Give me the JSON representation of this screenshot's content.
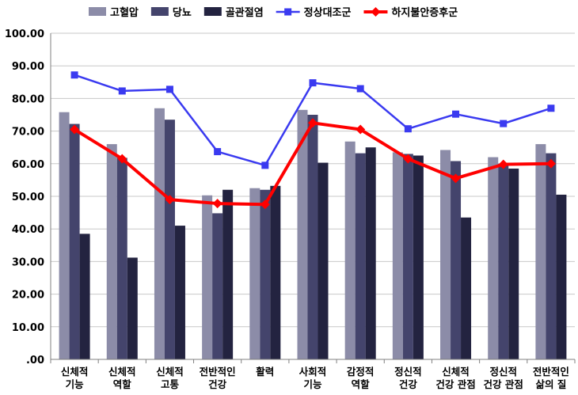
{
  "chart_data": {
    "type": "bar",
    "categories": [
      [
        "신체적",
        "기능"
      ],
      [
        "신체적",
        "역할"
      ],
      [
        "신체적",
        "고통"
      ],
      [
        "전반적인",
        "건강"
      ],
      [
        "활력"
      ],
      [
        "사회적",
        "기능"
      ],
      [
        "감정적",
        "역할"
      ],
      [
        "정신적",
        "건강"
      ],
      [
        "신체적",
        "건강 관점"
      ],
      [
        "정신적",
        "건강 관점"
      ],
      [
        "전반적인",
        "삶의 질"
      ]
    ],
    "ylim": [
      0,
      100
    ],
    "ytick_step": 10,
    "ytick_labels": [
      ".00",
      "10.00",
      "20.00",
      "30.00",
      "40.00",
      "50.00",
      "60.00",
      "70.00",
      "80.00",
      "90.00",
      "100.00"
    ],
    "grid": true,
    "legend_position": "top",
    "bar_series": [
      {
        "name": "고혈압",
        "color": "#8c8ca8",
        "values": [
          75.8,
          66.0,
          77.0,
          50.3,
          52.5,
          76.5,
          66.8,
          63.5,
          64.2,
          62.0,
          66.0
        ]
      },
      {
        "name": "당뇨",
        "color": "#44446c",
        "values": [
          72.2,
          61.8,
          73.5,
          44.8,
          52.0,
          75.0,
          63.2,
          63.0,
          60.8,
          60.0,
          63.2
        ]
      },
      {
        "name": "골관절염",
        "color": "#232340",
        "values": [
          38.5,
          31.2,
          41.0,
          52.0,
          53.2,
          60.3,
          65.0,
          62.5,
          43.5,
          58.5,
          50.5
        ]
      }
    ],
    "line_series": [
      {
        "name": "정상대조군",
        "color": "#3a3af0",
        "marker": "square",
        "values": [
          87.2,
          82.3,
          82.8,
          63.7,
          59.5,
          84.8,
          83.0,
          70.7,
          75.2,
          72.3,
          77.0
        ]
      },
      {
        "name": "하지불안증후군",
        "color": "#ff0000",
        "marker": "diamond",
        "values": [
          70.5,
          61.5,
          49.0,
          47.8,
          47.5,
          72.5,
          70.5,
          61.5,
          55.5,
          59.8,
          60.0
        ]
      }
    ]
  }
}
